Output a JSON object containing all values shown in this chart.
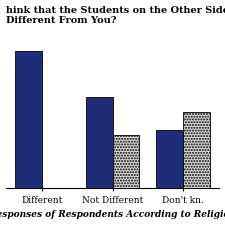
{
  "title_line1": "hink that the Students on the Other Side of the B",
  "title_line2": "Different From You?",
  "categories": [
    "Different",
    "Not Different",
    "Don't kn..."
  ],
  "protestant_values": [
    90,
    60,
    38
  ],
  "catholic_values": [
    0,
    35,
    50
  ],
  "protestant_color": "#1E2C7A",
  "catholic_color": "#DCDCDC",
  "xlabel": "Responses of Respondents According to Religion",
  "ylim": [
    0,
    105
  ],
  "bar_width": 0.38,
  "background_color": "#FFFFFF",
  "grid_color": "#BBBBBB",
  "title_fontsize": 7,
  "label_fontsize": 6.5,
  "tick_fontsize": 6.5
}
